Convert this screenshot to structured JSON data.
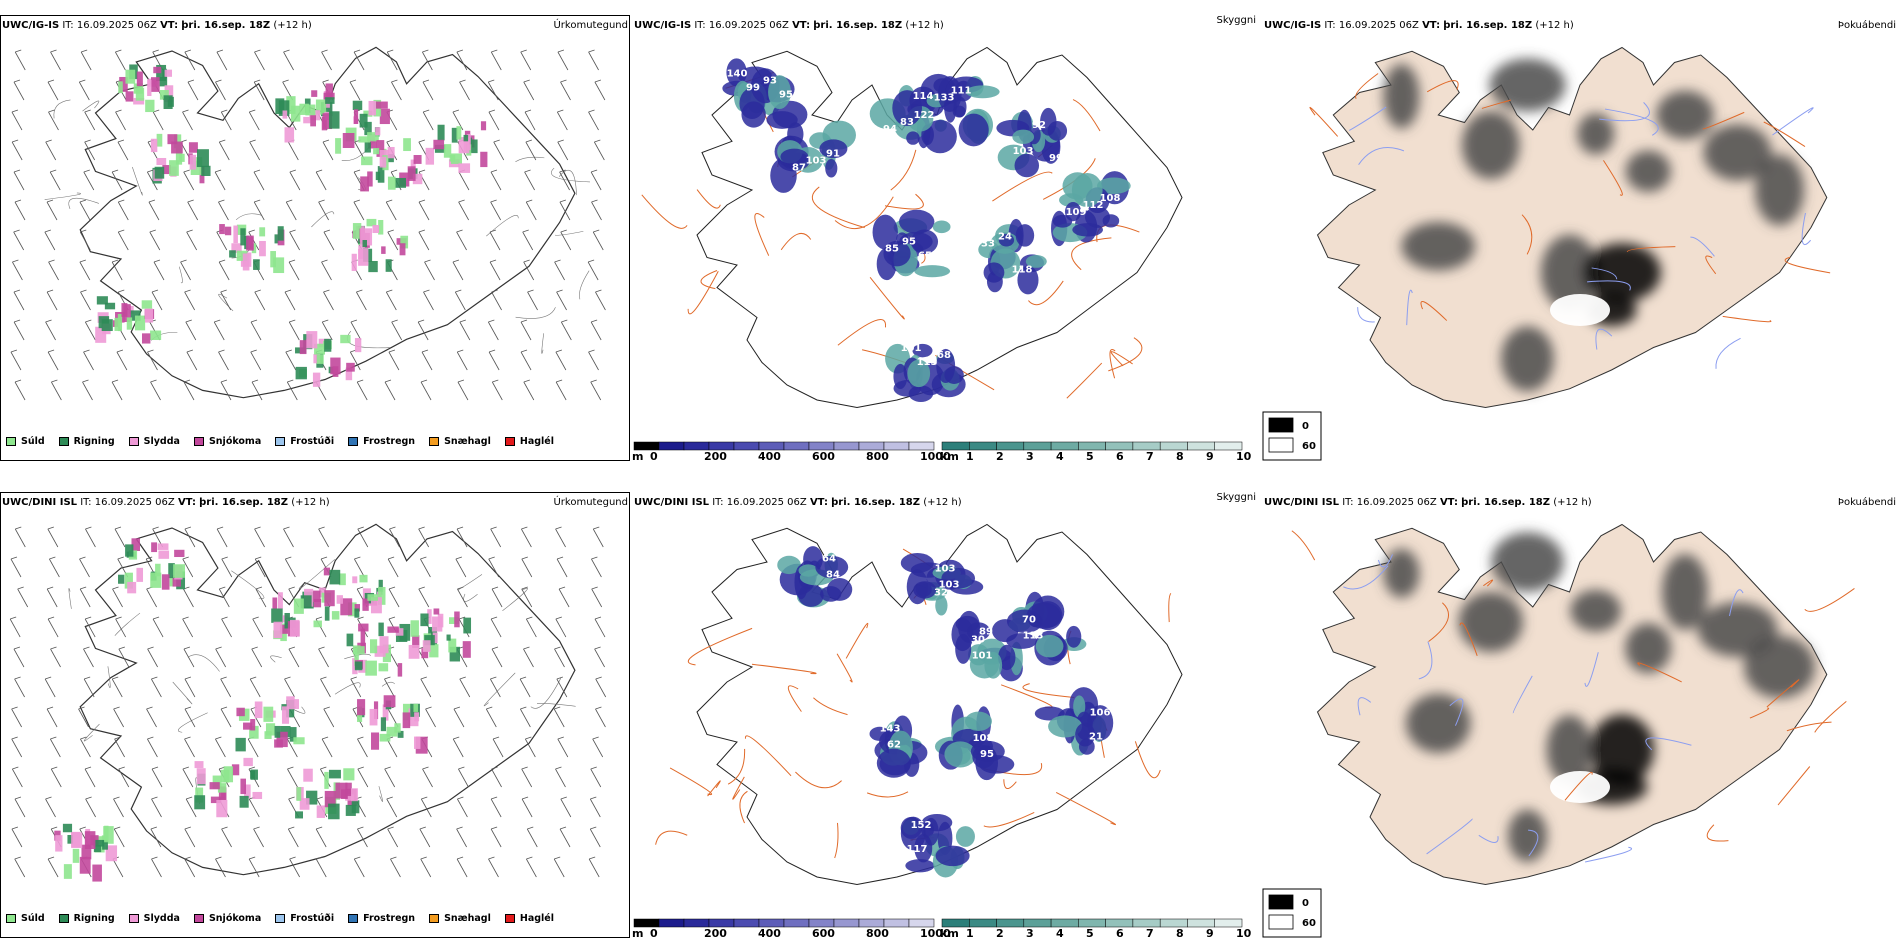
{
  "rows": [
    {
      "precip": {
        "model": "UWC/IG-IS",
        "it_label": "IT:",
        "it_value": "16.09.2025 06Z",
        "vt_label": "VT:",
        "vt_value": "þri. 16.sep. 18Z",
        "lead": "(+12 h)",
        "title": "Úrkomutegund"
      },
      "cloud": {
        "model": "UWC/IG-IS",
        "it_label": "IT:",
        "it_value": "16.09.2025 06Z",
        "vt_label": "VT:",
        "vt_value": "þri. 16.sep. 18Z",
        "lead": "(+12 h)",
        "title": "Skyggni"
      },
      "fog": {
        "model": "UWC/IG-IS",
        "it_label": "IT:",
        "it_value": "16.09.2025 06Z",
        "vt_label": "VT:",
        "vt_value": "þri. 16.sep. 18Z",
        "lead": "(+12 h)",
        "title": "Þokuábendi"
      },
      "cloud_labels": [
        "140",
        "122",
        "111",
        "103",
        "108",
        "118",
        "95",
        "101",
        "91",
        "93",
        "83",
        "133",
        "99",
        "112",
        "24",
        "85",
        "68",
        "103",
        "99",
        "94",
        "128",
        "92",
        "109",
        "33",
        "65",
        "115",
        "87",
        "95",
        "114"
      ]
    },
    {
      "precip": {
        "model": "UWC/DINI ISL",
        "it_label": "IT:",
        "it_value": "16.09.2025 06Z",
        "vt_label": "VT:",
        "vt_value": "þri. 16.sep. 18Z",
        "lead": "(+12 h)",
        "title": "Úrkomutegund"
      },
      "cloud": {
        "model": "UWC/DINI ISL",
        "it_label": "IT:",
        "it_value": "16.09.2025 06Z",
        "vt_label": "VT:",
        "vt_value": "þri. 16.sep. 18Z",
        "lead": "(+12 h)",
        "title": "Skyggni"
      },
      "fog": {
        "model": "UWC/DINI ISL",
        "it_label": "IT:",
        "it_value": "16.09.2025 06Z",
        "vt_label": "VT:",
        "vt_value": "þri. 16.sep. 18Z",
        "lead": "(+12 h)",
        "title": "Þokuábendi"
      },
      "cloud_labels": [
        "68",
        "103",
        "89",
        "113",
        "106",
        "95",
        "62",
        "152",
        "84",
        "103",
        "101",
        "70",
        "21",
        "108",
        "143",
        "117",
        "64",
        "32",
        "30"
      ]
    }
  ],
  "precip_legend": [
    {
      "label": "Súld",
      "color": "#8ee68e"
    },
    {
      "label": "Rigning",
      "color": "#2e8b57"
    },
    {
      "label": "Slydda",
      "color": "#ee9ad6"
    },
    {
      "label": "Snjókoma",
      "color": "#c2489c"
    },
    {
      "label": "Frostúði",
      "color": "#9dc6ee"
    },
    {
      "label": "Frostregn",
      "color": "#3074b4"
    },
    {
      "label": "Snæhagl",
      "color": "#f39c20"
    },
    {
      "label": "Haglél",
      "color": "#e31a1c"
    }
  ],
  "height_bar": {
    "unit": "m",
    "ticks": [
      "0",
      "200",
      "400",
      "600",
      "800",
      "1000"
    ],
    "colors": [
      "#000000",
      "#1c1c8c",
      "#2a2a9a",
      "#3a3aa6",
      "#4b4bb0",
      "#5d5db8",
      "#6f6fc0",
      "#8383c8",
      "#9797d0",
      "#ababd8",
      "#c0c0e2",
      "#d6d6ec"
    ]
  },
  "vis_bar": {
    "unit": "km",
    "ticks": [
      "1",
      "2",
      "3",
      "4",
      "5",
      "6",
      "7",
      "8",
      "9",
      "10"
    ],
    "colors": [
      "#2c7f7a",
      "#3b8a84",
      "#4b958e",
      "#5ca098",
      "#6eaba3",
      "#80b6ae",
      "#93c1ba",
      "#a6ccc6",
      "#bad7d2",
      "#cee2de",
      "#e2eeec"
    ]
  },
  "fog_legend": [
    {
      "label": "0",
      "color": "#000000"
    },
    {
      "label": "60",
      "color": "#ffffff"
    }
  ],
  "colors": {
    "land_fog": "#f1dfd0",
    "roads": "#e06a2a",
    "rivers": "#8c9ef0",
    "cloud_fill": "#2b2b9c",
    "vis_fill": "#5aa7a3"
  }
}
